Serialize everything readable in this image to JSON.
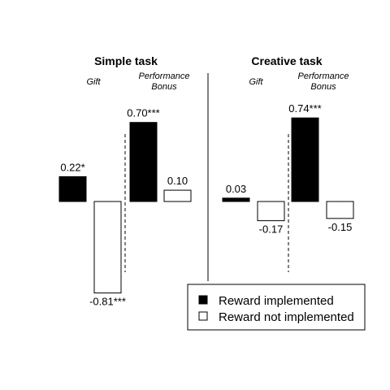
{
  "chart_data": {
    "type": "bar",
    "xlabel": "",
    "ylabel": "",
    "legend": {
      "placement": "bottom-right",
      "entries": [
        {
          "name": "Reward implemented",
          "color": "#000000"
        },
        {
          "name": "Reward not implemented",
          "color": "#ffffff"
        }
      ]
    },
    "panels": [
      {
        "title": "Simple task",
        "groups": [
          {
            "label": "Gift",
            "bars": [
              {
                "series": "Reward implemented",
                "value": 0.22,
                "label": "0.22*"
              },
              {
                "series": "Reward not implemented",
                "value": -0.81,
                "label": "-0.81***"
              }
            ]
          },
          {
            "label": "Performance Bonus",
            "label_lines": [
              "Performance",
              "Bonus"
            ],
            "bars": [
              {
                "series": "Reward implemented",
                "value": 0.7,
                "label": "0.70***"
              },
              {
                "series": "Reward not implemented",
                "value": 0.1,
                "label": "0.10"
              }
            ]
          }
        ]
      },
      {
        "title": "Creative task",
        "groups": [
          {
            "label": "Gift",
            "bars": [
              {
                "series": "Reward implemented",
                "value": 0.03,
                "label": "0.03"
              },
              {
                "series": "Reward not implemented",
                "value": -0.17,
                "label": "-0.17"
              }
            ]
          },
          {
            "label": "Performance Bonus",
            "label_lines": [
              "Performance",
              "Bonus"
            ],
            "bars": [
              {
                "series": "Reward implemented",
                "value": 0.74,
                "label": "0.74***"
              },
              {
                "series": "Reward not implemented",
                "value": -0.15,
                "label": "-0.15"
              }
            ]
          }
        ]
      }
    ]
  }
}
